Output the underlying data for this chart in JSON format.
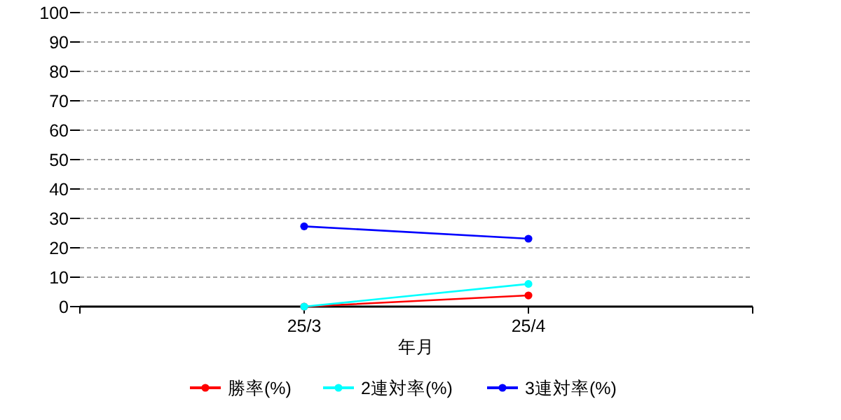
{
  "chart_data": {
    "type": "line",
    "xlabel": "年月",
    "categories": [
      "25/3",
      "25/4"
    ],
    "series": [
      {
        "name": "勝率(%)",
        "color": "#ff0000",
        "values": [
          0,
          3.8
        ]
      },
      {
        "name": "2連対率(%)",
        "color": "#00ffff",
        "values": [
          0,
          7.7
        ]
      },
      {
        "name": "3連対率(%)",
        "color": "#0000ff",
        "values": [
          27.3,
          23.1
        ]
      }
    ],
    "ylim": [
      0,
      100
    ],
    "yticks": [
      0,
      10,
      20,
      30,
      40,
      50,
      60,
      70,
      80,
      90,
      100
    ],
    "grid": "y",
    "legend": "bottom",
    "marker": "circle",
    "line_style": "solid"
  }
}
